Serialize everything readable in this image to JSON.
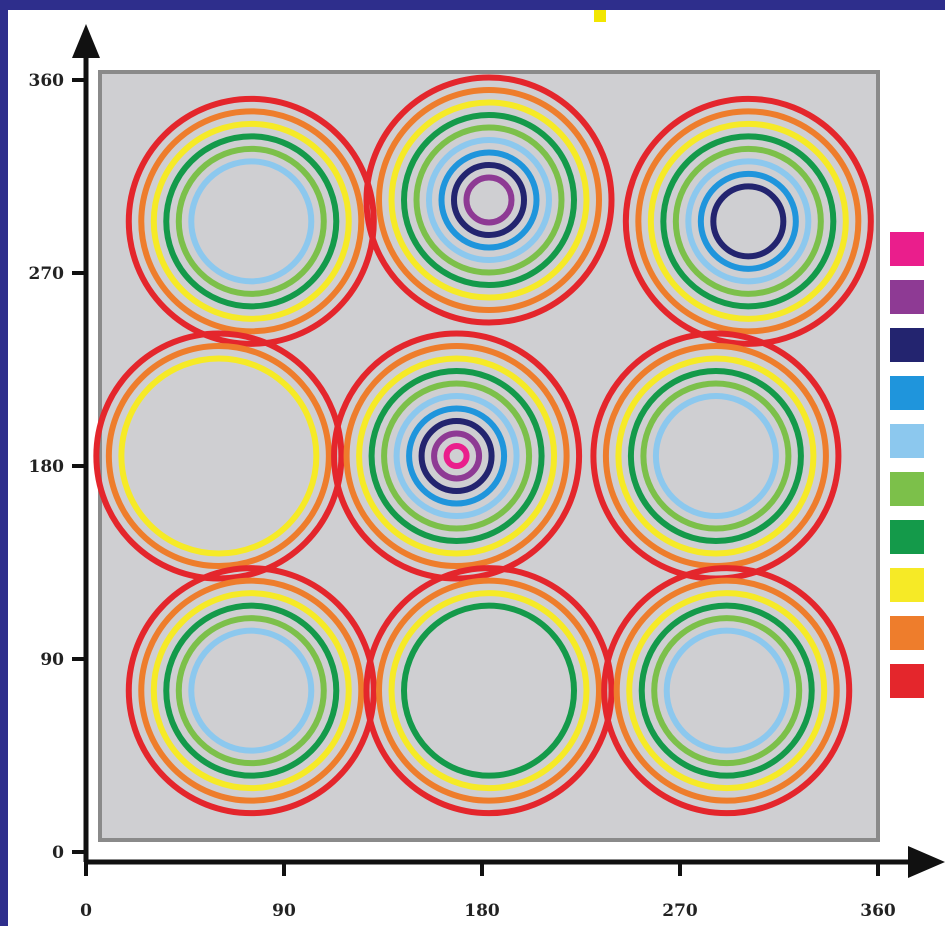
{
  "colors": {
    "background_border": "#2e2e8c",
    "accent": "#f2e600",
    "plot_background": "#cfcfd2",
    "axis": "#111111"
  },
  "chart_data": {
    "type": "scatter",
    "description_type": "concentric ring contour field",
    "xlim": [
      0,
      360
    ],
    "ylim": [
      0,
      360
    ],
    "x_ticks": [
      "0",
      "90",
      "180",
      "270",
      "360"
    ],
    "y_ticks": [
      "0",
      "90",
      "180",
      "270",
      "360"
    ],
    "grid": false,
    "legend_placement": "right",
    "level_colors": [
      "#ea1e8c",
      "#8e3a94",
      "#23246f",
      "#1f95dc",
      "#8cc8ee",
      "#7cc04a",
      "#149a4a",
      "#f6ea26",
      "#ee7d2c",
      "#e4262c"
    ],
    "centers": [
      {
        "x": 70,
        "y": 290,
        "levels": [
          0,
          0,
          0,
          0,
          1,
          1,
          1,
          1,
          1,
          1
        ]
      },
      {
        "x": 180,
        "y": 300,
        "levels": [
          0,
          1,
          1,
          1,
          1,
          1,
          1,
          1,
          1,
          1
        ]
      },
      {
        "x": 300,
        "y": 290,
        "levels": [
          0,
          0,
          1,
          1,
          1,
          1,
          1,
          1,
          1,
          1
        ]
      },
      {
        "x": 55,
        "y": 180,
        "levels": [
          0,
          0,
          0,
          0,
          0,
          0,
          0,
          1,
          1,
          1
        ]
      },
      {
        "x": 165,
        "y": 180,
        "levels": [
          1,
          1,
          1,
          1,
          1,
          1,
          1,
          1,
          1,
          1
        ]
      },
      {
        "x": 285,
        "y": 180,
        "levels": [
          0,
          0,
          0,
          0,
          1,
          1,
          1,
          1,
          1,
          1
        ]
      },
      {
        "x": 70,
        "y": 70,
        "levels": [
          0,
          0,
          0,
          0,
          1,
          1,
          1,
          1,
          1,
          1
        ]
      },
      {
        "x": 180,
        "y": 70,
        "levels": [
          0,
          0,
          0,
          0,
          0,
          0,
          1,
          1,
          1,
          1
        ]
      },
      {
        "x": 290,
        "y": 70,
        "levels": [
          0,
          0,
          0,
          0,
          1,
          1,
          1,
          1,
          1,
          1
        ]
      }
    ]
  }
}
